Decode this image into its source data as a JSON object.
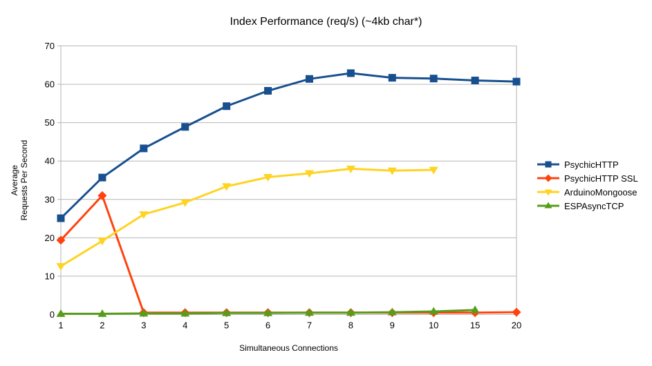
{
  "chart_data": {
    "type": "line",
    "title": "Index Performance (req/s) (~4kb char*)",
    "xlabel": "Simultaneous Connections",
    "ylabel": [
      "Average",
      "Requests Per Second"
    ],
    "categories": [
      "1",
      "2",
      "3",
      "4",
      "5",
      "6",
      "7",
      "8",
      "9",
      "10",
      "15",
      "20"
    ],
    "ylim": [
      0,
      70
    ],
    "ytick_step": 10,
    "grid": "horizontal",
    "legend_position": "right",
    "series": [
      {
        "name": "PsychicHTTP",
        "color": "#174F8F",
        "marker": "square",
        "values": [
          25.1,
          35.7,
          43.3,
          48.9,
          54.3,
          58.3,
          61.4,
          62.9,
          61.7,
          61.5,
          61.0,
          60.7
        ]
      },
      {
        "name": "PsychicHTTP SSL",
        "color": "#FF420E",
        "marker": "diamond",
        "values": [
          19.4,
          31.0,
          0.5,
          0.5,
          0.5,
          0.5,
          0.5,
          0.5,
          0.5,
          0.5,
          0.5,
          0.6
        ]
      },
      {
        "name": "ArduinoMongoose",
        "color": "#FFD320",
        "marker": "triangle-down",
        "values": [
          12.6,
          19.2,
          26.1,
          29.2,
          33.4,
          35.8,
          36.8,
          38.0,
          37.5,
          37.7
        ]
      },
      {
        "name": "ESPAsyncTCP",
        "color": "#579D1C",
        "marker": "triangle-up",
        "values": [
          0.2,
          0.2,
          0.3,
          0.3,
          0.4,
          0.4,
          0.5,
          0.5,
          0.6,
          0.8,
          1.2
        ]
      }
    ]
  },
  "colors": {
    "grid": "#B6B6B6",
    "axis": "#B3B3B3",
    "text": "#000000",
    "background": "#FFFFFF"
  }
}
